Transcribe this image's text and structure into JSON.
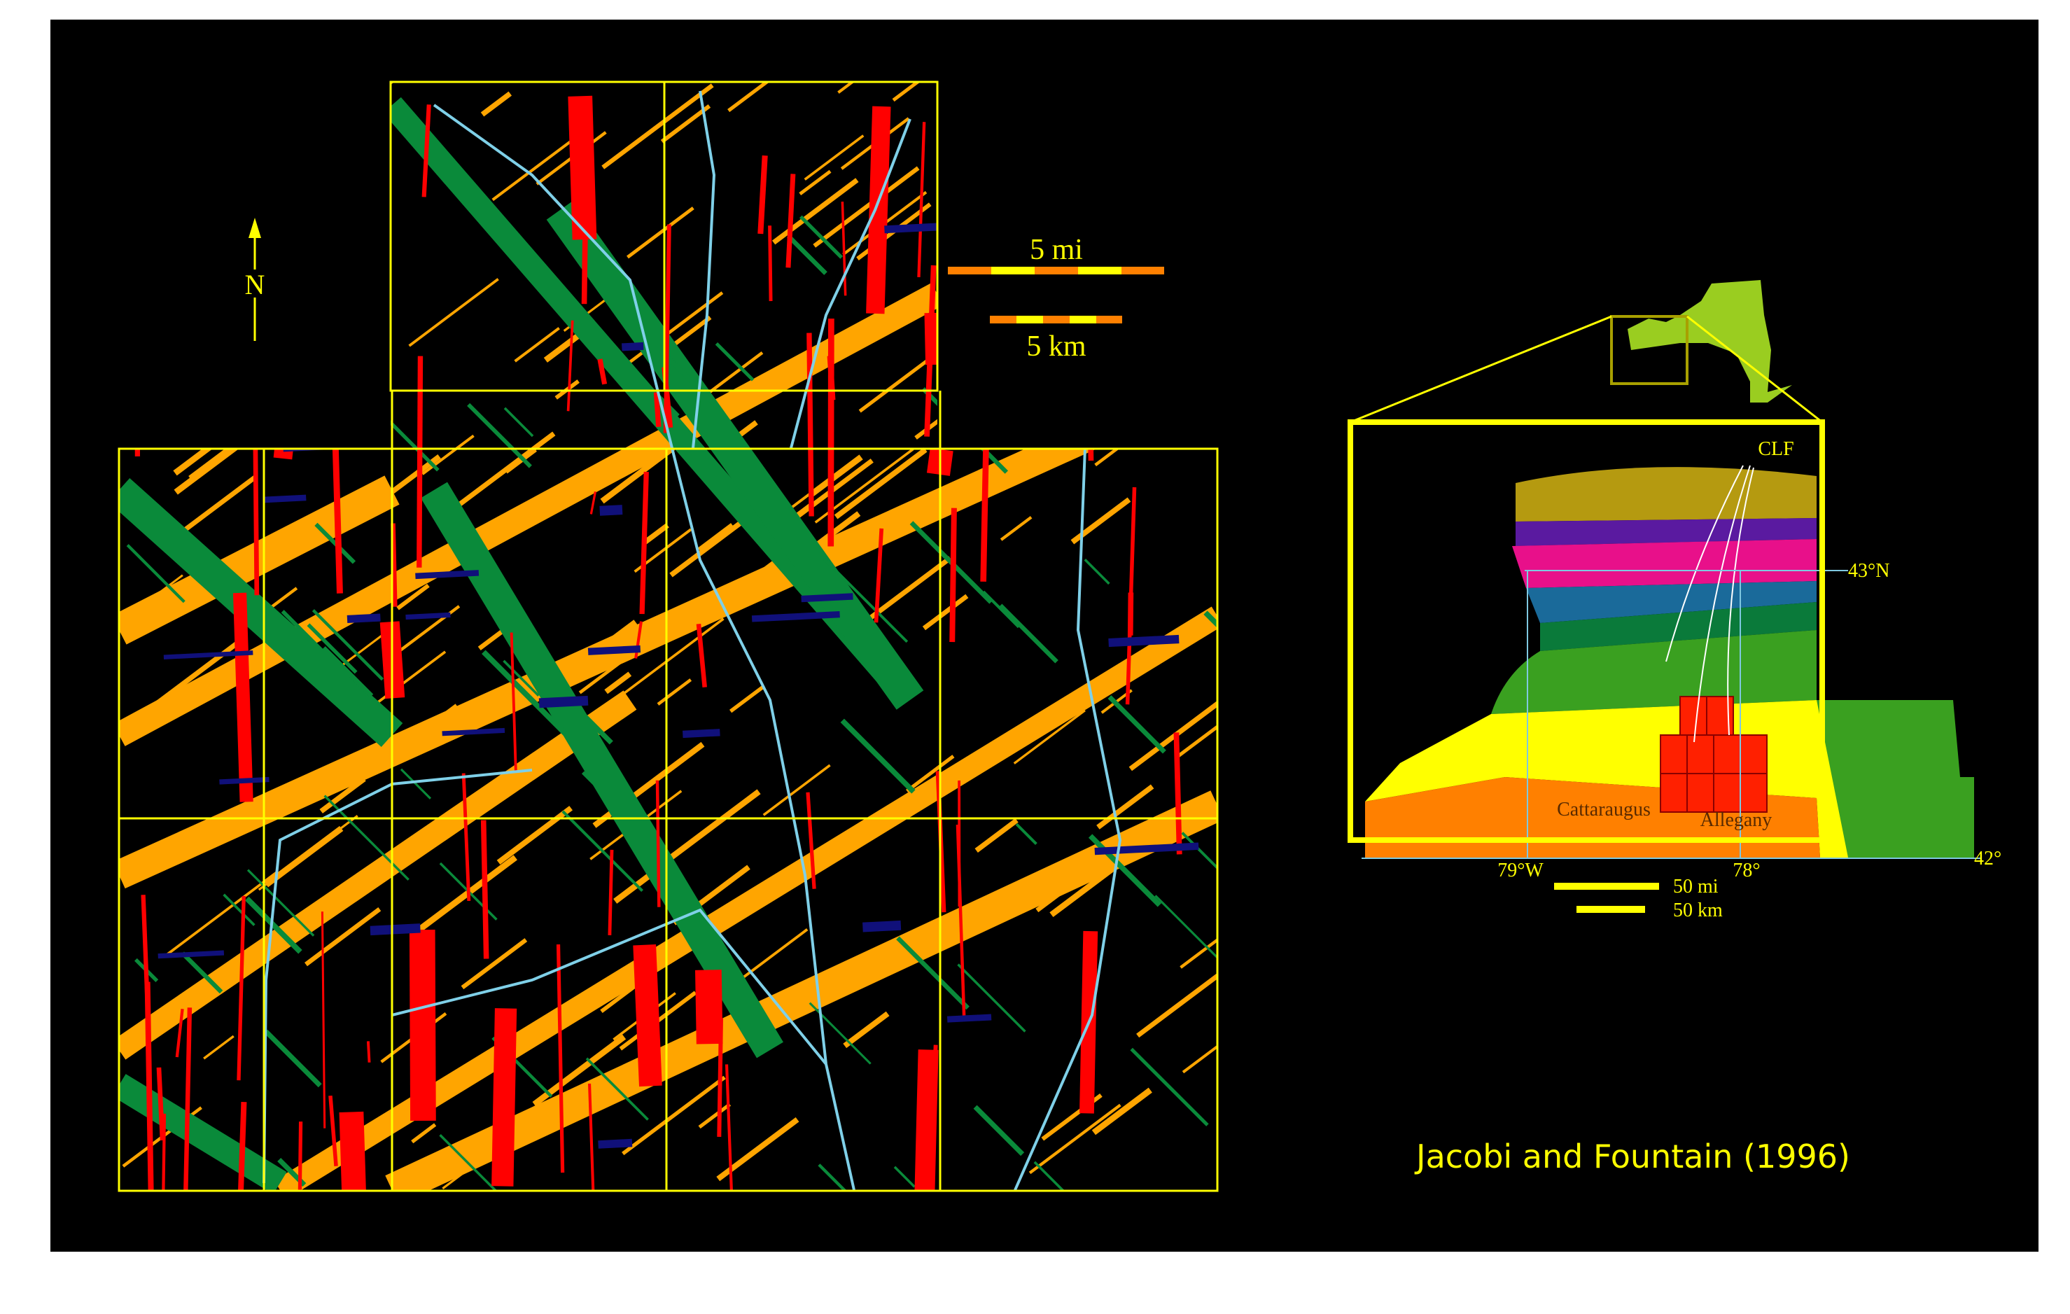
{
  "colors": {
    "background": "#000000",
    "grid": "#ffff00",
    "orange_lineament": "#ffa500",
    "green_lineament": "#0a8a3a",
    "red_lineament": "#ff0000",
    "navy_lineament": "#10107a",
    "river": "#7fd0e8",
    "text": "#ffff00"
  },
  "north_arrow": {
    "label": "N"
  },
  "scale_bars": {
    "miles": {
      "label": "5 mi"
    },
    "kilometers": {
      "label": "5 km"
    }
  },
  "inset": {
    "fault_label": "CLF",
    "lat_north": "43°N",
    "lat_south": "42°",
    "lon_west": "79°W",
    "lon_east": "78°",
    "counties": [
      "Cattaraugus",
      "Allegany"
    ],
    "scale_miles": "50 mi",
    "scale_km": "50 km",
    "geology_colors": [
      "#b59a10",
      "#e8108a",
      "#5a1aa0",
      "#1a6a9a",
      "#0a7a3a",
      "#3aa020",
      "#8ac020",
      "#ffff00",
      "#ff8000",
      "#ff2000"
    ]
  },
  "citation": "Jacobi and Fountain (1996)"
}
